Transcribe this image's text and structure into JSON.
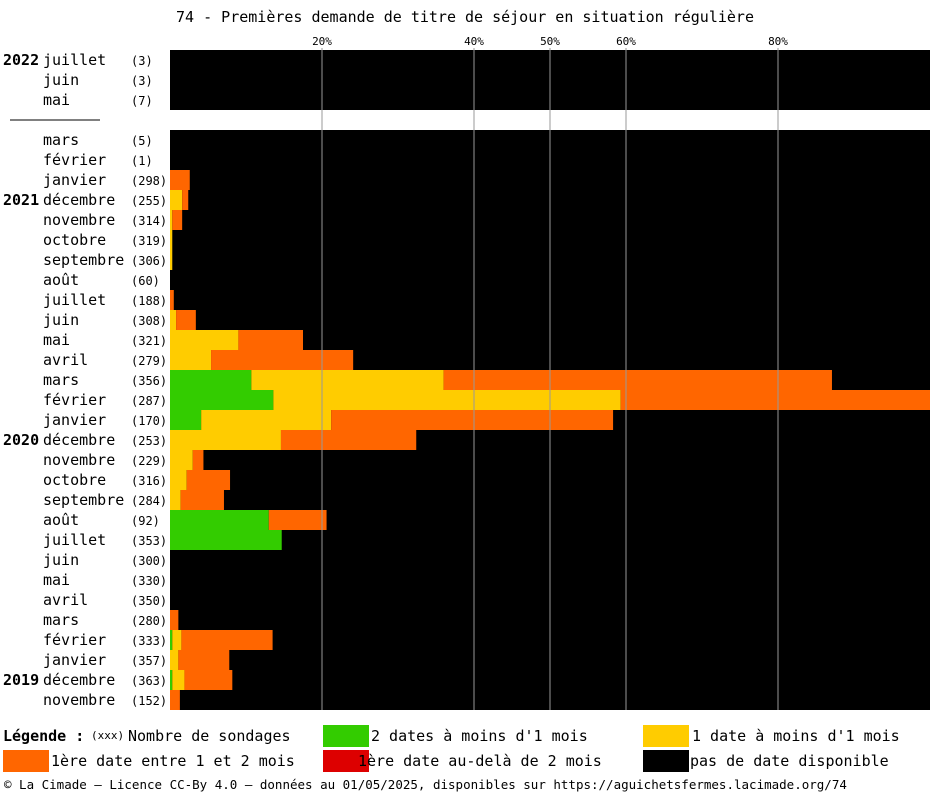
{
  "chart_data": {
    "type": "bar",
    "orientation": "horizontal",
    "stacked": true,
    "title": "74 - Premières demande de titre de séjour en situation régulière",
    "x_ticks": [
      {
        "value": 20,
        "label": "20%"
      },
      {
        "value": 40,
        "label": "40%"
      },
      {
        "value": 50,
        "label": "50%"
      },
      {
        "value": 60,
        "label": "60%"
      },
      {
        "value": 80,
        "label": "80%"
      }
    ],
    "xlim": [
      0,
      100
    ],
    "separator_after_row": 2,
    "rows": [
      {
        "year": "2022",
        "month": "juillet",
        "count": "(3)",
        "green": 0,
        "yellow": 0,
        "orange": 0,
        "red": 0
      },
      {
        "year": "",
        "month": "juin",
        "count": "(3)",
        "green": 0,
        "yellow": 0,
        "orange": 0,
        "red": 0
      },
      {
        "year": "",
        "month": "mai",
        "count": "(7)",
        "green": 0,
        "yellow": 0,
        "orange": 0,
        "red": 0
      },
      {
        "year": "",
        "month": "mars",
        "count": "(5)",
        "green": 0,
        "yellow": 0,
        "orange": 0,
        "red": 0
      },
      {
        "year": "",
        "month": "février",
        "count": "(1)",
        "green": 0,
        "yellow": 0,
        "orange": 0,
        "red": 0
      },
      {
        "year": "",
        "month": "janvier",
        "count": "(298)",
        "green": 0,
        "yellow": 0,
        "orange": 2.6,
        "red": 0
      },
      {
        "year": "2021",
        "month": "décembre",
        "count": "(255)",
        "green": 0,
        "yellow": 1.6,
        "orange": 0.8,
        "red": 0
      },
      {
        "year": "",
        "month": "novembre",
        "count": "(314)",
        "green": 0,
        "yellow": 0.3,
        "orange": 1.3,
        "red": 0
      },
      {
        "year": "",
        "month": "octobre",
        "count": "(319)",
        "green": 0,
        "yellow": 0.3,
        "orange": 0,
        "red": 0
      },
      {
        "year": "",
        "month": "septembre",
        "count": "(306)",
        "green": 0,
        "yellow": 0.3,
        "orange": 0,
        "red": 0
      },
      {
        "year": "",
        "month": "août",
        "count": "(60)",
        "green": 0,
        "yellow": 0,
        "orange": 0,
        "red": 0
      },
      {
        "year": "",
        "month": "juillet",
        "count": "(188)",
        "green": 0,
        "yellow": 0,
        "orange": 0.5,
        "red": 0
      },
      {
        "year": "",
        "month": "juin",
        "count": "(308)",
        "green": 0,
        "yellow": 0.8,
        "orange": 2.6,
        "red": 0
      },
      {
        "year": "",
        "month": "mai",
        "count": "(321)",
        "green": 0,
        "yellow": 9.0,
        "orange": 8.5,
        "red": 0
      },
      {
        "year": "",
        "month": "avril",
        "count": "(279)",
        "green": 0,
        "yellow": 5.4,
        "orange": 18.7,
        "red": 0
      },
      {
        "year": "",
        "month": "mars",
        "count": "(356)",
        "green": 10.7,
        "yellow": 25.3,
        "orange": 51.1,
        "red": 0
      },
      {
        "year": "",
        "month": "février",
        "count": "(287)",
        "green": 13.6,
        "yellow": 45.7,
        "orange": 40.7,
        "red": 0
      },
      {
        "year": "",
        "month": "janvier",
        "count": "(170)",
        "green": 4.1,
        "yellow": 17.1,
        "orange": 37.1,
        "red": 0
      },
      {
        "year": "2020",
        "month": "décembre",
        "count": "(253)",
        "green": 0,
        "yellow": 14.6,
        "orange": 17.8,
        "red": 0
      },
      {
        "year": "",
        "month": "novembre",
        "count": "(229)",
        "green": 0,
        "yellow": 3.0,
        "orange": 1.4,
        "red": 0
      },
      {
        "year": "",
        "month": "octobre",
        "count": "(316)",
        "green": 0,
        "yellow": 2.2,
        "orange": 5.7,
        "red": 0
      },
      {
        "year": "",
        "month": "septembre",
        "count": "(284)",
        "green": 0,
        "yellow": 1.4,
        "orange": 5.7,
        "red": 0
      },
      {
        "year": "",
        "month": "août",
        "count": "(92)",
        "green": 13.0,
        "yellow": 0,
        "orange": 7.6,
        "red": 0
      },
      {
        "year": "",
        "month": "juillet",
        "count": "(353)",
        "green": 14.7,
        "yellow": 0,
        "orange": 0,
        "red": 0
      },
      {
        "year": "",
        "month": "juin",
        "count": "(300)",
        "green": 0,
        "yellow": 0,
        "orange": 0,
        "red": 0
      },
      {
        "year": "",
        "month": "mai",
        "count": "(330)",
        "green": 0,
        "yellow": 0,
        "orange": 0,
        "red": 0
      },
      {
        "year": "",
        "month": "avril",
        "count": "(350)",
        "green": 0,
        "yellow": 0,
        "orange": 0,
        "red": 0
      },
      {
        "year": "",
        "month": "mars",
        "count": "(280)",
        "green": 0,
        "yellow": 0,
        "orange": 1.1,
        "red": 0
      },
      {
        "year": "",
        "month": "février",
        "count": "(333)",
        "green": 0.3,
        "yellow": 1.2,
        "orange": 12.0,
        "red": 0
      },
      {
        "year": "",
        "month": "janvier",
        "count": "(357)",
        "green": 0,
        "yellow": 1.1,
        "orange": 6.7,
        "red": 0
      },
      {
        "year": "2019",
        "month": "décembre",
        "count": "(363)",
        "green": 0.3,
        "yellow": 1.6,
        "orange": 6.3,
        "red": 0
      },
      {
        "year": "",
        "month": "novembre",
        "count": "(152)",
        "green": 0,
        "yellow": 0,
        "orange": 1.3,
        "red": 0
      }
    ]
  },
  "colors": {
    "green": "#33cc00",
    "yellow": "#ffcc00",
    "orange": "#ff6600",
    "red": "#dd0000",
    "black": "#000000",
    "grid": "#999999"
  },
  "legend": {
    "heading": "Légende :",
    "count_marker": "(xxx)",
    "count_label": "Nombre de sondages",
    "green_label": "2 dates à moins d'1 mois",
    "yellow_label": "1 date à moins d'1 mois",
    "orange_label": "1ère date entre 1 et 2 mois",
    "red_label": "1ère date au-delà de 2 mois",
    "black_label": "pas de date disponible"
  },
  "footer": "© La Cimade — Licence CC-By 4.0 — données au 01/05/2025, disponibles sur https://aguichetsfermes.lacimade.org/74"
}
